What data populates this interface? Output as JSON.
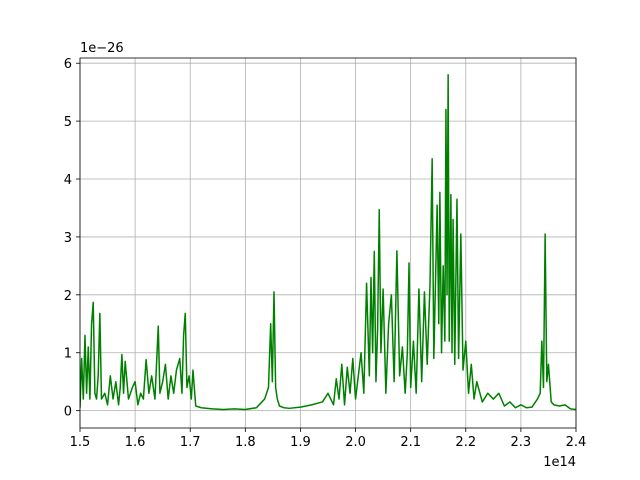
{
  "chart_data": {
    "type": "line",
    "x": [
      1.5,
      1.503,
      1.506,
      1.509,
      1.512,
      1.515,
      1.518,
      1.521,
      1.524,
      1.527,
      1.53,
      1.533,
      1.536,
      1.539,
      1.545,
      1.55,
      1.555,
      1.56,
      1.565,
      1.57,
      1.573,
      1.576,
      1.579,
      1.582,
      1.588,
      1.595,
      1.6,
      1.605,
      1.61,
      1.615,
      1.62,
      1.625,
      1.63,
      1.636,
      1.642,
      1.645,
      1.65,
      1.655,
      1.66,
      1.665,
      1.67,
      1.675,
      1.681,
      1.685,
      1.688,
      1.691,
      1.694,
      1.698,
      1.702,
      1.705,
      1.71,
      1.72,
      1.74,
      1.76,
      1.78,
      1.8,
      1.82,
      1.835,
      1.842,
      1.846,
      1.849,
      1.852,
      1.855,
      1.858,
      1.862,
      1.87,
      1.88,
      1.9,
      1.92,
      1.94,
      1.95,
      1.96,
      1.965,
      1.97,
      1.975,
      1.98,
      1.985,
      1.99,
      1.995,
      2.0,
      2.005,
      2.01,
      2.015,
      2.02,
      2.025,
      2.028,
      2.031,
      2.034,
      2.037,
      2.04,
      2.043,
      2.046,
      2.05,
      2.055,
      2.06,
      2.065,
      2.07,
      2.075,
      2.08,
      2.085,
      2.09,
      2.094,
      2.097,
      2.1,
      2.105,
      2.11,
      2.115,
      2.12,
      2.125,
      2.13,
      2.135,
      2.139,
      2.142,
      2.145,
      2.148,
      2.151,
      2.153,
      2.156,
      2.159,
      2.162,
      2.164,
      2.166,
      2.168,
      2.17,
      2.173,
      2.175,
      2.177,
      2.18,
      2.184,
      2.187,
      2.191,
      2.195,
      2.2,
      2.205,
      2.21,
      2.215,
      2.22,
      2.23,
      2.24,
      2.25,
      2.26,
      2.27,
      2.28,
      2.29,
      2.3,
      2.31,
      2.32,
      2.33,
      2.335,
      2.338,
      2.341,
      2.344,
      2.347,
      2.35,
      2.355,
      2.36,
      2.37,
      2.38,
      2.39,
      2.4
    ],
    "series": [
      {
        "color": "#008000",
        "values": [
          0.05,
          0.9,
          0.2,
          1.3,
          0.3,
          1.1,
          0.2,
          1.5,
          1.87,
          0.3,
          0.2,
          0.6,
          1.68,
          0.2,
          0.3,
          0.1,
          0.6,
          0.2,
          0.5,
          0.1,
          0.4,
          0.97,
          0.3,
          0.85,
          0.2,
          0.4,
          0.5,
          0.1,
          0.3,
          0.2,
          0.88,
          0.3,
          0.6,
          0.2,
          1.46,
          0.3,
          0.5,
          0.8,
          0.2,
          0.6,
          0.3,
          0.7,
          0.9,
          0.3,
          1.3,
          1.68,
          0.4,
          0.6,
          0.2,
          0.7,
          0.08,
          0.05,
          0.03,
          0.02,
          0.03,
          0.02,
          0.05,
          0.2,
          0.4,
          1.5,
          0.5,
          2.05,
          0.4,
          0.2,
          0.08,
          0.05,
          0.04,
          0.06,
          0.1,
          0.15,
          0.3,
          0.1,
          0.55,
          0.2,
          0.8,
          0.1,
          0.75,
          0.3,
          0.9,
          0.2,
          0.6,
          1.0,
          0.3,
          2.2,
          0.6,
          2.3,
          1.0,
          2.75,
          0.5,
          1.4,
          3.47,
          1.0,
          2.1,
          0.3,
          1.5,
          2.0,
          0.5,
          2.76,
          0.6,
          1.1,
          0.3,
          1.0,
          2.55,
          0.4,
          1.2,
          0.3,
          2.1,
          0.5,
          2.05,
          0.8,
          2.15,
          4.35,
          0.9,
          2.2,
          3.55,
          1.5,
          3.77,
          1.0,
          2.5,
          1.2,
          5.2,
          2.0,
          5.8,
          1.2,
          3.73,
          1.0,
          3.3,
          0.8,
          3.65,
          0.9,
          3.05,
          0.7,
          1.2,
          0.3,
          0.8,
          0.2,
          0.5,
          0.15,
          0.3,
          0.2,
          0.3,
          0.08,
          0.15,
          0.05,
          0.1,
          0.05,
          0.06,
          0.2,
          0.3,
          1.2,
          0.4,
          3.05,
          0.5,
          0.8,
          0.15,
          0.1,
          0.08,
          0.1,
          0.03,
          0.02
        ]
      }
    ],
    "xlim": [
      1.5,
      2.4
    ],
    "ylim": [
      -0.3,
      6.09
    ],
    "xticks": [
      1.5,
      1.6,
      1.7,
      1.8,
      1.9,
      {
        "value": 2,
        "label": "2.0"
      },
      2.1,
      2.2,
      2.3,
      2.4
    ],
    "yticks": [
      0,
      1,
      2,
      3,
      4,
      5,
      6
    ],
    "x_offset": "1e14",
    "y_offset": "1e−26",
    "grid": true
  }
}
